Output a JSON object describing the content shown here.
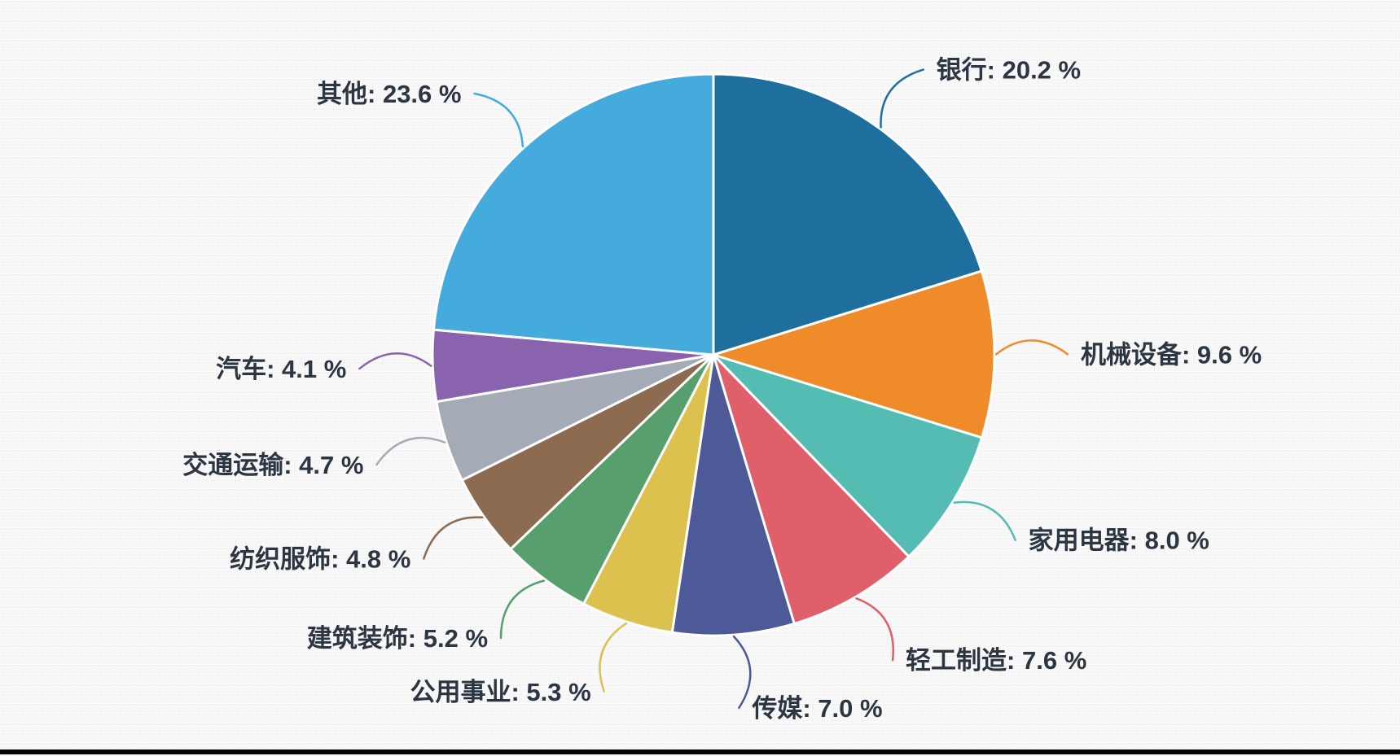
{
  "chart_data": {
    "type": "pie",
    "title": "",
    "legend_position": "none",
    "value_unit": "%",
    "label_format": "{name}: {value} %",
    "background_color": "#f7f7f8",
    "slice_border_color": "#ffffff",
    "label_text_color": "#2c3642",
    "start_angle_deg_clockwise_from_top": 0,
    "direction": "clockwise",
    "series": [
      {
        "name": "银行",
        "value": 20.2,
        "display": "银行: 20.2 %",
        "color": "#1f6f9e"
      },
      {
        "name": "机械设备",
        "value": 9.6,
        "display": "机械设备: 9.6 %",
        "color": "#f08b29"
      },
      {
        "name": "家用电器",
        "value": 8.0,
        "display": "家用电器: 8.0 %",
        "color": "#54bcb3"
      },
      {
        "name": "轻工制造",
        "value": 7.6,
        "display": "轻工制造: 7.6 %",
        "color": "#df5f6b"
      },
      {
        "name": "传媒",
        "value": 7.0,
        "display": "传媒: 7.0 %",
        "color": "#4d5a97"
      },
      {
        "name": "公用事业",
        "value": 5.3,
        "display": "公用事业: 5.3 %",
        "color": "#dcc14f"
      },
      {
        "name": "建筑装饰",
        "value": 5.2,
        "display": "建筑装饰: 5.2 %",
        "color": "#57a06e"
      },
      {
        "name": "纺织服饰",
        "value": 4.8,
        "display": "纺织服饰: 4.8 %",
        "color": "#8c6b51"
      },
      {
        "name": "交通运输",
        "value": 4.7,
        "display": "交通运输: 4.7 %",
        "color": "#a4abb6"
      },
      {
        "name": "汽车",
        "value": 4.1,
        "display": "汽车: 4.1 %",
        "color": "#8a63ae"
      },
      {
        "name": "其他",
        "value": 23.6,
        "display": "其他: 23.6 %",
        "color": "#45abdc"
      }
    ]
  }
}
